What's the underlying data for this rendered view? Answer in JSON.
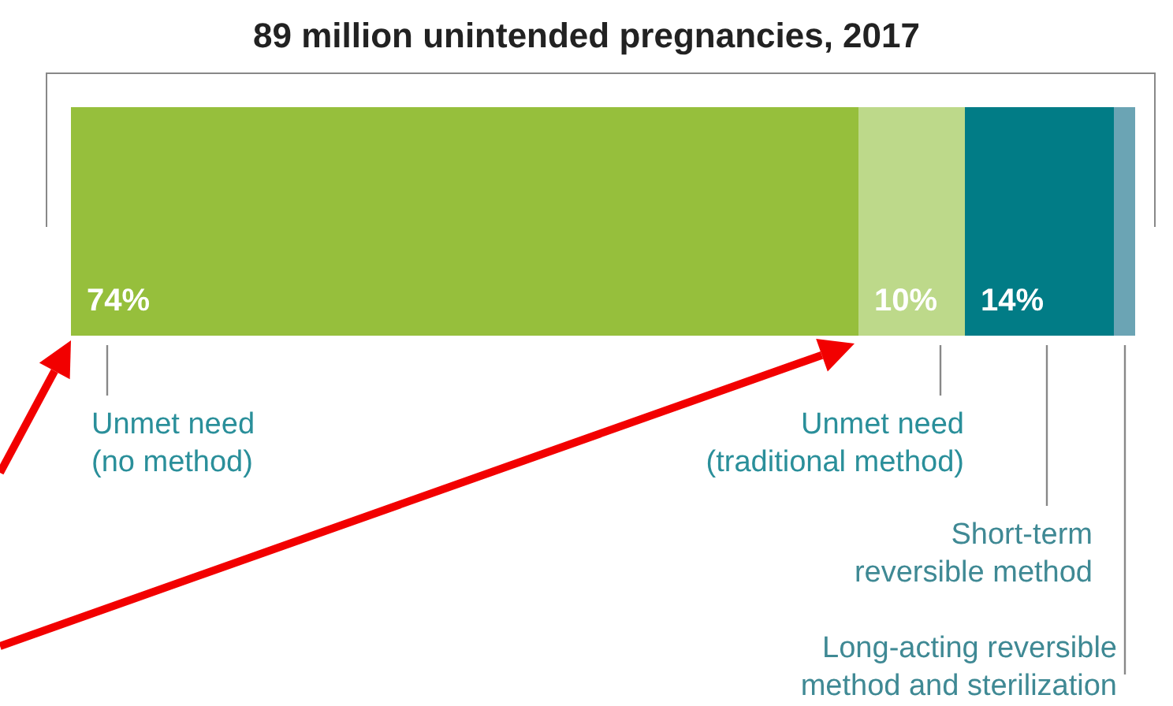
{
  "chart_data": {
    "type": "bar",
    "orientation": "horizontal",
    "stacked": true,
    "title": "89 million unintended pregnancies, 2017",
    "categories": [
      null
    ],
    "xlim": [
      0,
      100
    ],
    "series": [
      {
        "name": "Unmet need\n(no method)",
        "color": "#96bf3c",
        "values": [
          74
        ],
        "value_labels": [
          "74%"
        ]
      },
      {
        "name": "Unmet need\n(traditional method)",
        "color": "#bdd98a",
        "values": [
          10
        ],
        "value_labels": [
          "10%"
        ]
      },
      {
        "name": "Short-term\nreversible method",
        "color": "#017c86",
        "values": [
          14
        ],
        "value_labels": [
          "14%"
        ]
      },
      {
        "name": "Long-acting reversible\nmethod and sterilization",
        "color": "#6ba4b4",
        "values": [
          2
        ],
        "value_labels": [
          null
        ]
      }
    ]
  }
}
